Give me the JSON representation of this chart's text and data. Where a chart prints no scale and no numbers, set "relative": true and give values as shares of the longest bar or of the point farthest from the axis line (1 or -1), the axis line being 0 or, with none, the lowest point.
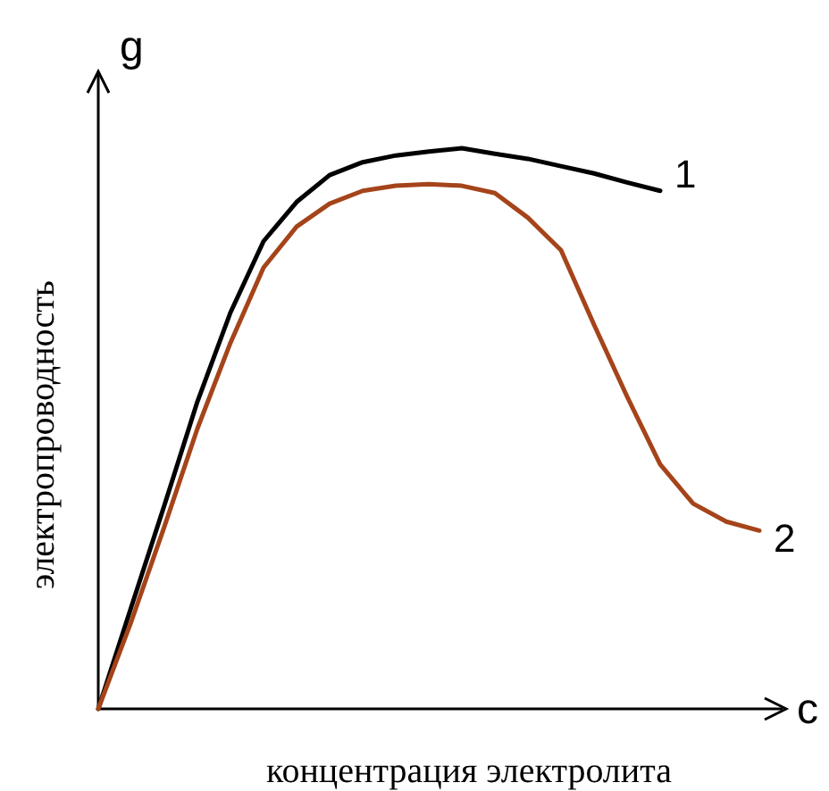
{
  "chart_data": {
    "type": "line",
    "relative": true,
    "xlabel": "концентрация электролита",
    "ylabel": "электропроводность",
    "annotations": [
      "g",
      "c"
    ],
    "categories": [
      null,
      null,
      null,
      null,
      null,
      null,
      null,
      null,
      null,
      null,
      null,
      null,
      null,
      null,
      null,
      null,
      null,
      null,
      null,
      null,
      null
    ],
    "series": [
      {
        "name": "1",
        "color": "#000000",
        "values": [
          0,
          0.182,
          0.363,
          0.548,
          0.707,
          0.834,
          0.904,
          0.952,
          0.975,
          0.987,
          0.994,
          1,
          0.99,
          0.981,
          0.968,
          0.955,
          0.939,
          0.924,
          null,
          null,
          null
        ]
      },
      {
        "name": "2",
        "color": "#a5441a",
        "values": [
          0,
          0.156,
          0.325,
          0.5,
          0.653,
          0.787,
          0.86,
          0.901,
          0.924,
          0.933,
          0.936,
          0.933,
          0.92,
          0.876,
          0.818,
          0.685,
          0.557,
          0.436,
          0.366,
          0.334,
          0.318
        ]
      }
    ]
  }
}
